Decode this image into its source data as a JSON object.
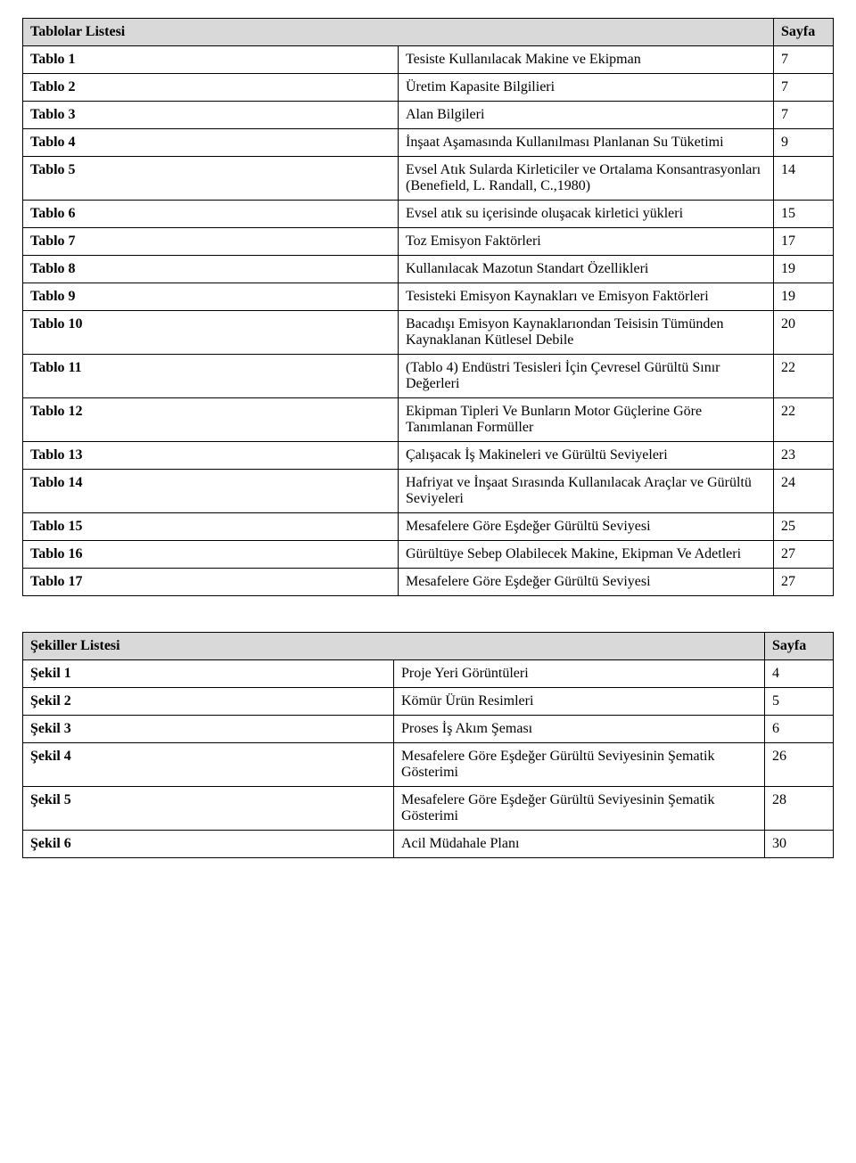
{
  "tablesList": {
    "title": "Tablolar Listesi",
    "pageHeader": "Sayfa",
    "col1_width": 95,
    "col3_width": 50,
    "header_bg": "#d9d9d9",
    "border_color": "#000000",
    "font_family": "Times New Roman",
    "font_size_pt": 12,
    "rows": [
      {
        "label": "Tablo 1",
        "desc": "Tesiste Kullanılacak Makine ve Ekipman",
        "page": "7"
      },
      {
        "label": "Tablo 2",
        "desc": "Üretim Kapasite Bilgilieri",
        "page": "7"
      },
      {
        "label": "Tablo 3",
        "desc": "Alan Bilgileri",
        "page": "7"
      },
      {
        "label": "Tablo 4",
        "desc": "İnşaat Aşamasında Kullanılması Planlanan Su Tüketimi",
        "page": "9"
      },
      {
        "label": "Tablo 5",
        "desc": "Evsel Atık Sularda Kirleticiler ve Ortalama Konsantrasyonları (Benefield, L. Randall, C.,1980)",
        "page": "14"
      },
      {
        "label": "Tablo 6",
        "desc": "Evsel atık su içerisinde oluşacak kirletici yükleri",
        "page": "15"
      },
      {
        "label": "Tablo 7",
        "desc": "Toz Emisyon Faktörleri",
        "page": "17"
      },
      {
        "label": "Tablo 8",
        "desc": "Kullanılacak Mazotun Standart Özellikleri",
        "page": "19"
      },
      {
        "label": "Tablo 9",
        "desc": "Tesisteki Emisyon Kaynakları ve Emisyon Faktörleri",
        "page": "19"
      },
      {
        "label": "Tablo 10",
        "desc": "Bacadışı Emisyon Kaynaklarıondan Teisisin Tümünden Kaynaklanan Kütlesel Debile",
        "page": "20"
      },
      {
        "label": "Tablo 11",
        "desc": "(Tablo 4)  Endüstri Tesisleri İçin Çevresel Gürültü Sınır Değerleri",
        "page": "22"
      },
      {
        "label": "Tablo 12",
        "desc": "Ekipman Tipleri Ve Bunların Motor Güçlerine Göre Tanımlanan Formüller",
        "page": "22"
      },
      {
        "label": "Tablo 13",
        "desc": "Çalışacak İş Makineleri ve Gürültü Seviyeleri",
        "page": "23"
      },
      {
        "label": "Tablo 14",
        "desc": "Hafriyat ve İnşaat Sırasında Kullanılacak Araçlar ve Gürültü Seviyeleri",
        "page": "24"
      },
      {
        "label": "Tablo 15",
        "desc": "Mesafelere Göre Eşdeğer Gürültü Seviyesi",
        "page": "25"
      },
      {
        "label": "Tablo 16",
        "desc": "Gürültüye Sebep Olabilecek Makine, Ekipman Ve Adetleri",
        "page": "27"
      },
      {
        "label": "Tablo 17",
        "desc": "Mesafelere Göre Eşdeğer Gürültü Seviyesi",
        "page": "27"
      }
    ]
  },
  "figuresList": {
    "title": "Şekiller Listesi",
    "pageHeader": "Sayfa",
    "col1_width": 115,
    "col3_width": 60,
    "header_bg": "#d9d9d9",
    "rows": [
      {
        "label": "Şekil 1",
        "desc": "Proje Yeri Görüntüleri",
        "page": "4"
      },
      {
        "label": "Şekil 2",
        "desc": "Kömür Ürün Resimleri",
        "page": "5"
      },
      {
        "label": "Şekil 3",
        "desc": "Proses İş Akım Şeması",
        "page": "6"
      },
      {
        "label": "Şekil 4",
        "desc": "Mesafelere Göre Eşdeğer Gürültü Seviyesinin Şematik Gösterimi",
        "page": "26"
      },
      {
        "label": "Şekil 5",
        "desc": "Mesafelere Göre Eşdeğer Gürültü Seviyesinin Şematik Gösterimi",
        "page": "28"
      },
      {
        "label": "Şekil 6",
        "desc": "Acil Müdahale Planı",
        "page": "30"
      }
    ]
  }
}
